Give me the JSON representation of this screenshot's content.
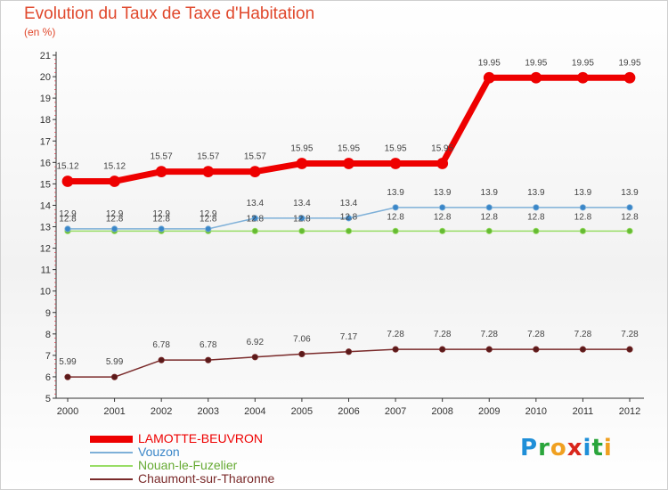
{
  "header": {
    "title": "Evolution du Taux de Taxe d'Habitation",
    "subtitle": "(en %)"
  },
  "chart_data": {
    "type": "line",
    "x": [
      "2000",
      "2001",
      "2002",
      "2003",
      "2004",
      "2005",
      "2006",
      "2007",
      "2008",
      "2009",
      "2010",
      "2011",
      "2012"
    ],
    "ylim": [
      5,
      21
    ],
    "yticks": [
      5,
      6,
      7,
      8,
      9,
      10,
      11,
      12,
      13,
      14,
      15,
      16,
      17,
      18,
      19,
      20,
      21
    ],
    "grid": false,
    "legend_position": "bottom-left",
    "series": [
      {
        "name": "LAMOTTE-BEUVRON",
        "color": "#ee0000",
        "width": 7,
        "values": [
          15.12,
          15.12,
          15.57,
          15.57,
          15.57,
          15.95,
          15.95,
          15.95,
          15.95,
          19.95,
          19.95,
          19.95,
          19.95
        ],
        "labels": [
          "15.12",
          "15.12",
          "15.57",
          "15.57",
          "15.57",
          "15.95",
          "15.95",
          "15.95",
          "15.95",
          "19.95",
          "19.95",
          "19.95",
          "19.95"
        ]
      },
      {
        "name": "Vouzon",
        "color": "#7eb0d8",
        "width": 1.5,
        "values": [
          12.9,
          12.9,
          12.9,
          12.9,
          13.4,
          13.4,
          13.4,
          13.9,
          13.9,
          13.9,
          13.9,
          13.9,
          13.9
        ],
        "labels": [
          "12.9",
          "12.9",
          "12.9",
          "12.9",
          "13.4",
          "13.4",
          "13.4",
          "13.9",
          "13.9",
          "13.9",
          "13.9",
          "13.9",
          "13.9"
        ]
      },
      {
        "name": "Nouan-le-Fuzelier",
        "color": "#99dd66",
        "width": 1.5,
        "values": [
          12.8,
          12.8,
          12.8,
          12.8,
          12.8,
          12.8,
          12.8,
          12.8,
          12.8,
          12.8,
          12.8,
          12.8,
          12.8
        ],
        "labels": [
          "12.8",
          "12.8",
          "12.8",
          "12.8",
          "12.8",
          "12.8",
          "12.8",
          "12.8",
          "12.8",
          "12.8",
          "12.8",
          "12.8",
          "12.8"
        ]
      },
      {
        "name": "Chaumont-sur-Tharonne",
        "color": "#7a2a2a",
        "width": 1.5,
        "values": [
          5.99,
          5.99,
          6.78,
          6.78,
          6.92,
          7.06,
          7.17,
          7.28,
          7.28,
          7.28,
          7.28,
          7.28,
          7.28
        ],
        "labels": [
          "5.99",
          "5.99",
          "6.78",
          "6.78",
          "6.92",
          "7.06",
          "7.17",
          "7.28",
          "7.28",
          "7.28",
          "7.28",
          "7.28",
          "7.28"
        ]
      }
    ]
  },
  "logo": {
    "text": "Proxiti",
    "letters": [
      {
        "ch": "P",
        "color": "#1f8fd8"
      },
      {
        "ch": "r",
        "color": "#2aa53b"
      },
      {
        "ch": "o",
        "color": "#f0a020"
      },
      {
        "ch": "x",
        "color": "#d9261c"
      },
      {
        "ch": "i",
        "color": "#1f8fd8"
      },
      {
        "ch": "t",
        "color": "#2aa53b"
      },
      {
        "ch": "i",
        "color": "#f0a020"
      }
    ]
  }
}
